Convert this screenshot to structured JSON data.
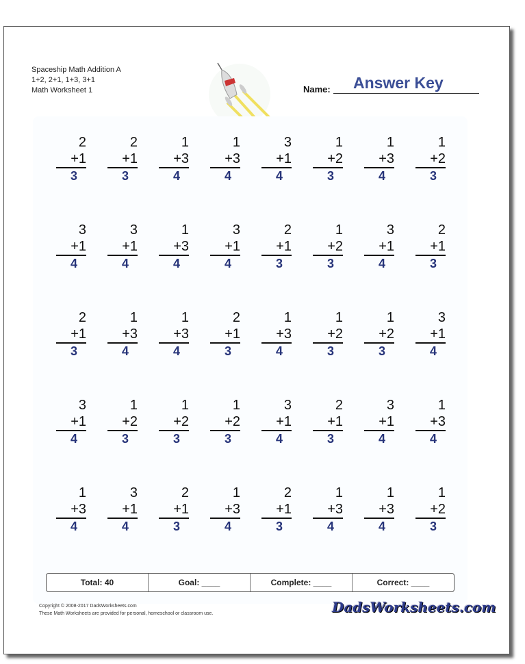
{
  "header": {
    "title": "Spaceship Math Addition A",
    "facts": "1+2, 2+1, 1+3, 3+1",
    "worksheet": "Math Worksheet 1",
    "name_label": "Name:",
    "name_value": "Answer Key"
  },
  "problems": [
    [
      [
        "2",
        "+1",
        "3"
      ],
      [
        "2",
        "+1",
        "3"
      ],
      [
        "1",
        "+3",
        "4"
      ],
      [
        "1",
        "+3",
        "4"
      ],
      [
        "3",
        "+1",
        "4"
      ],
      [
        "1",
        "+2",
        "3"
      ],
      [
        "1",
        "+3",
        "4"
      ],
      [
        "1",
        "+2",
        "3"
      ]
    ],
    [
      [
        "3",
        "+1",
        "4"
      ],
      [
        "3",
        "+1",
        "4"
      ],
      [
        "1",
        "+3",
        "4"
      ],
      [
        "3",
        "+1",
        "4"
      ],
      [
        "2",
        "+1",
        "3"
      ],
      [
        "1",
        "+2",
        "3"
      ],
      [
        "3",
        "+1",
        "4"
      ],
      [
        "2",
        "+1",
        "3"
      ]
    ],
    [
      [
        "2",
        "+1",
        "3"
      ],
      [
        "1",
        "+3",
        "4"
      ],
      [
        "1",
        "+3",
        "4"
      ],
      [
        "2",
        "+1",
        "3"
      ],
      [
        "1",
        "+3",
        "4"
      ],
      [
        "1",
        "+2",
        "3"
      ],
      [
        "1",
        "+2",
        "3"
      ],
      [
        "3",
        "+1",
        "4"
      ]
    ],
    [
      [
        "3",
        "+1",
        "4"
      ],
      [
        "1",
        "+2",
        "3"
      ],
      [
        "1",
        "+2",
        "3"
      ],
      [
        "1",
        "+2",
        "3"
      ],
      [
        "3",
        "+1",
        "4"
      ],
      [
        "2",
        "+1",
        "3"
      ],
      [
        "3",
        "+1",
        "4"
      ],
      [
        "1",
        "+3",
        "4"
      ]
    ],
    [
      [
        "1",
        "+3",
        "4"
      ],
      [
        "3",
        "+1",
        "4"
      ],
      [
        "2",
        "+1",
        "3"
      ],
      [
        "1",
        "+3",
        "4"
      ],
      [
        "2",
        "+1",
        "3"
      ],
      [
        "1",
        "+3",
        "4"
      ],
      [
        "1",
        "+3",
        "4"
      ],
      [
        "1",
        "+2",
        "3"
      ]
    ]
  ],
  "totals": {
    "total": "Total: 40",
    "goal": "Goal: ____",
    "complete": "Complete: ____",
    "correct": "Correct: ____"
  },
  "footer": {
    "copyright": "Copyright © 2008-2017 DadsWorksheets.com",
    "note": "These Math Worksheets are provided for personal, homeschool or classroom use.",
    "logo": "DadsWorksheets.com"
  },
  "colors": {
    "answer": "#27347a",
    "answer_key": "#3b4e96"
  }
}
